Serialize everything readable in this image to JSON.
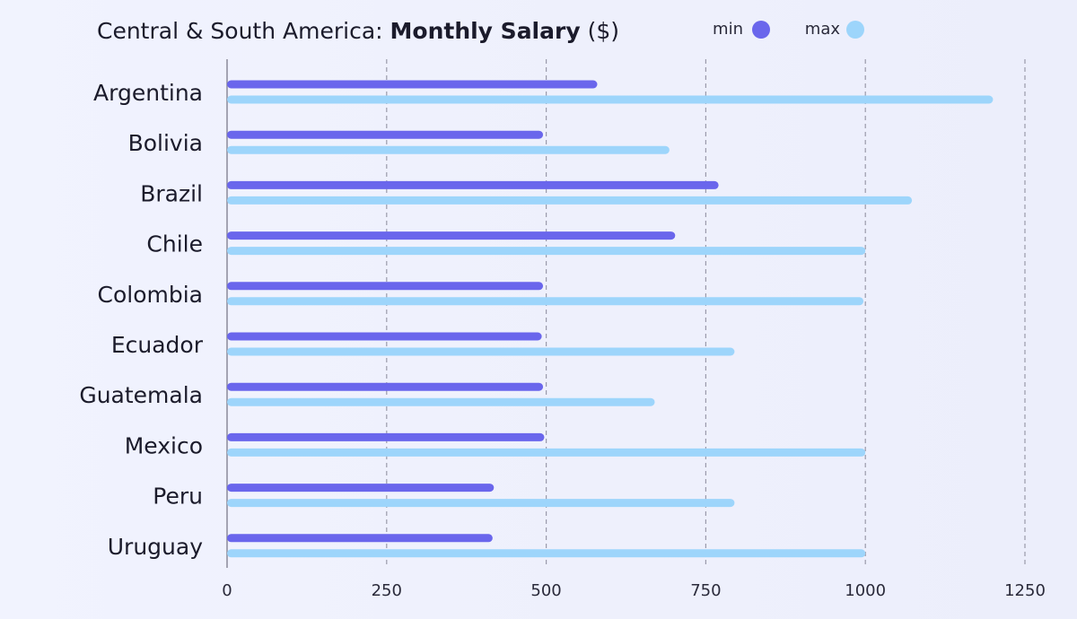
{
  "chart_data": {
    "type": "bar",
    "orientation": "horizontal",
    "title_prefix": "Central & South America: ",
    "title_bold": "Monthly Salary",
    "title_suffix": " ($)",
    "categories": [
      "Argentina",
      "Bolivia",
      "Brazil",
      "Chile",
      "Colombia",
      "Ecuador",
      "Guatemala",
      "Mexico",
      "Peru",
      "Uruguay"
    ],
    "series": [
      {
        "name": "min",
        "color": "#6a66ec",
        "values": [
          580,
          495,
          770,
          702,
          495,
          493,
          495,
          497,
          418,
          416
        ]
      },
      {
        "name": "max",
        "color": "#9dd5fb",
        "values": [
          1200,
          693,
          1073,
          1000,
          997,
          795,
          670,
          1000,
          795,
          1000
        ]
      }
    ],
    "xticks": [
      "0",
      "250",
      "500",
      "750",
      "1000",
      "1250"
    ],
    "xlim": [
      0,
      1250
    ],
    "grid": true,
    "legend_position": "top-right"
  }
}
